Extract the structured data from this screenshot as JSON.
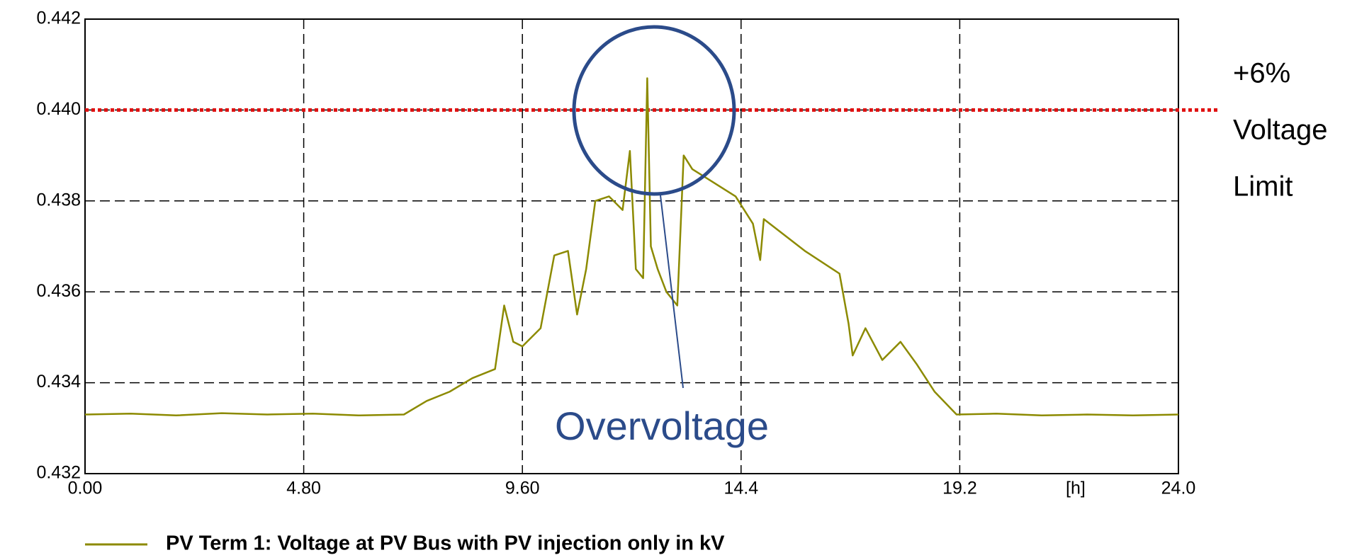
{
  "chart_data": {
    "type": "line",
    "x": [
      0,
      1,
      2,
      3,
      4,
      5,
      6,
      7,
      7.5,
      8,
      8.5,
      9,
      9.2,
      9.4,
      9.6,
      10,
      10.3,
      10.6,
      10.8,
      11,
      11.2,
      11.5,
      11.8,
      11.96,
      12.09,
      12.25,
      12.34,
      12.42,
      12.57,
      12.76,
      13,
      13.14,
      13.33,
      14.28,
      14.66,
      14.82,
      14.9,
      15.8,
      16.56,
      16.76,
      16.85,
      17.13,
      17.5,
      17.9,
      18.26,
      18.65,
      19.13,
      20,
      21,
      22,
      23,
      24
    ],
    "series": [
      {
        "name": "PV Term 1: Voltage at PV Bus with PV injection only in kV",
        "color": "#8c8a00",
        "values": [
          0.4333,
          0.43332,
          0.43328,
          0.43333,
          0.4333,
          0.43332,
          0.43328,
          0.4333,
          0.4336,
          0.4338,
          0.4341,
          0.4343,
          0.4357,
          0.4349,
          0.4348,
          0.4352,
          0.4368,
          0.4369,
          0.4355,
          0.4365,
          0.438,
          0.4381,
          0.4378,
          0.4391,
          0.4365,
          0.4363,
          0.4407,
          0.437,
          0.4365,
          0.436,
          0.4357,
          0.439,
          0.4387,
          0.4381,
          0.4375,
          0.4367,
          0.4376,
          0.4369,
          0.4364,
          0.4353,
          0.4346,
          0.4352,
          0.4345,
          0.4349,
          0.4344,
          0.4338,
          0.4333,
          0.43332,
          0.43328,
          0.4333,
          0.43328,
          0.4333
        ]
      }
    ],
    "xlim": [
      0,
      24
    ],
    "xticks": [
      {
        "value": 0,
        "label": "0.00"
      },
      {
        "value": 4.8,
        "label": "4.80"
      },
      {
        "value": 9.6,
        "label": "9.60"
      },
      14.4,
      19.2,
      {
        "value": 24,
        "label": "24.0"
      }
    ],
    "x_label": "[h]",
    "ylim": [
      0.432,
      0.442
    ],
    "yticks": [
      0.432,
      0.434,
      0.436,
      0.438,
      {
        "value": 0.44,
        "label": "0.440"
      },
      0.442
    ],
    "grid": true,
    "limit_line": {
      "value": 0.44,
      "color": "#e01010",
      "label": [
        "+6%",
        "Voltage",
        "Limit"
      ]
    },
    "annotation": "Overvoltage"
  }
}
